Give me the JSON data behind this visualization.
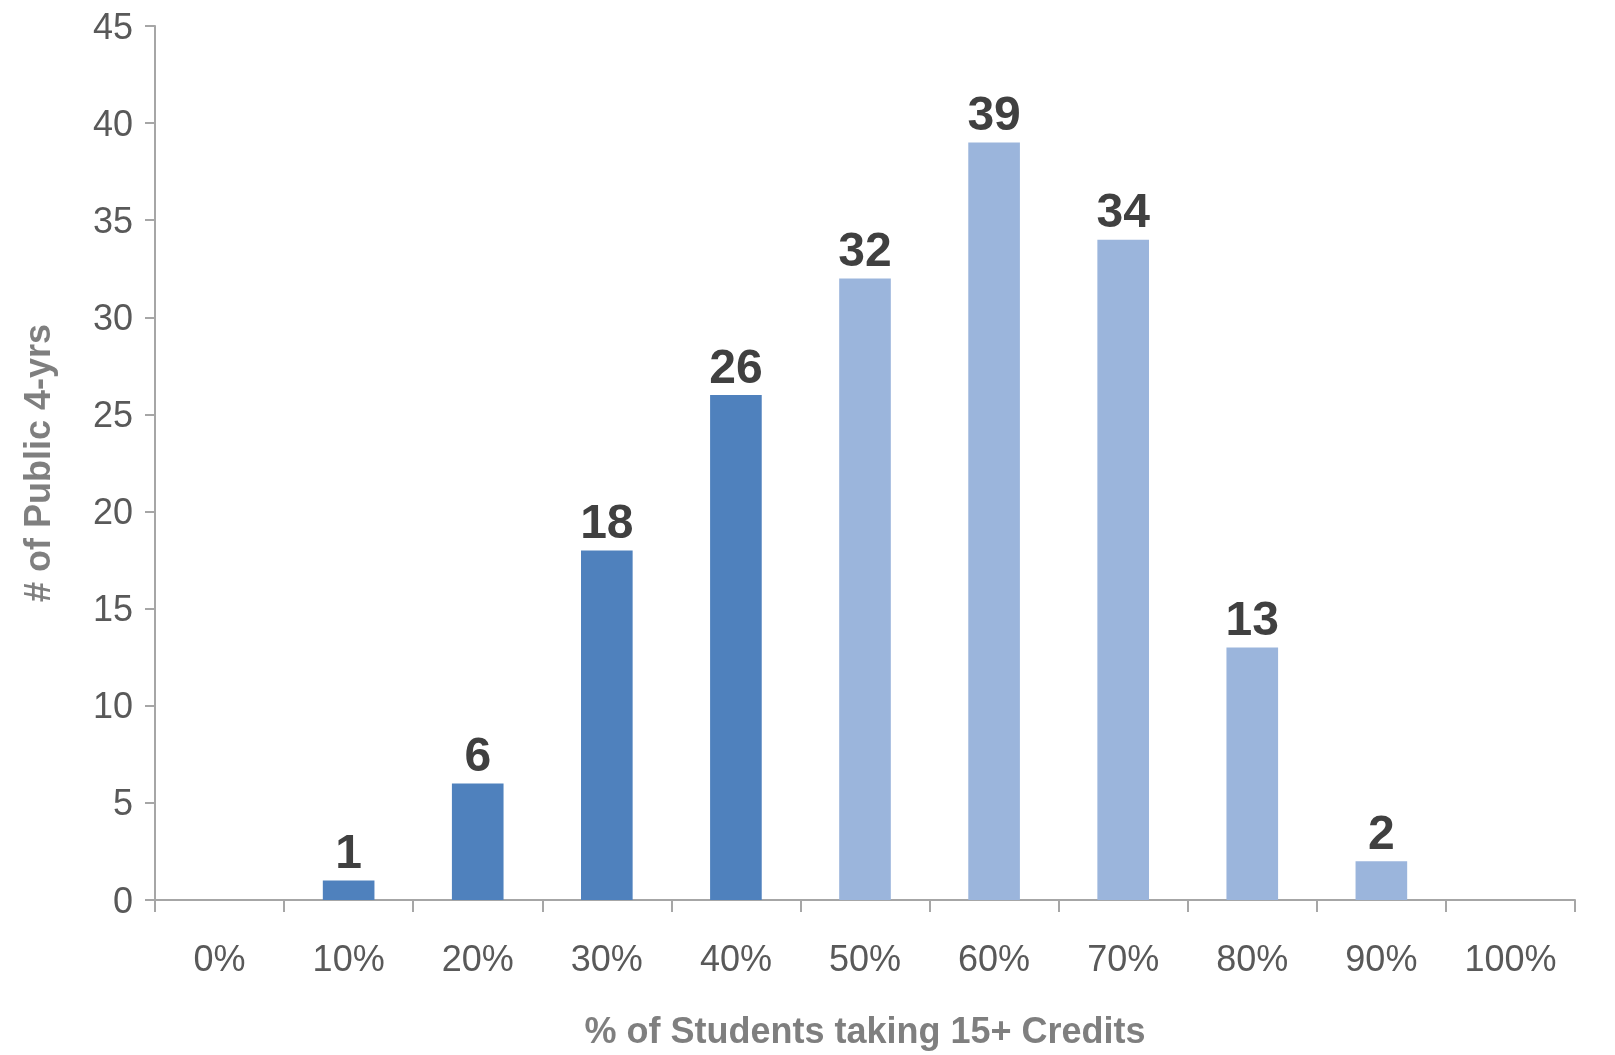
{
  "chart_data": {
    "type": "bar",
    "xlabel": "% of Students taking 15+ Credits",
    "ylabel": "# of Public 4-yrs",
    "categories": [
      "0%",
      "10%",
      "20%",
      "30%",
      "40%",
      "50%",
      "60%",
      "70%",
      "80%",
      "90%",
      "100%"
    ],
    "values": [
      null,
      1,
      6,
      18,
      26,
      32,
      39,
      34,
      13,
      2,
      null
    ],
    "colors": [
      "#4f81bd",
      "#4f81bd",
      "#4f81bd",
      "#4f81bd",
      "#4f81bd",
      "#9bb5dc",
      "#9bb5dc",
      "#9bb5dc",
      "#9bb5dc",
      "#9bb5dc",
      "#9bb5dc"
    ],
    "ylim": [
      0,
      45
    ],
    "yticks": [
      0,
      5,
      10,
      15,
      20,
      25,
      30,
      35,
      40,
      45
    ],
    "data_labels": true,
    "grid": false
  }
}
